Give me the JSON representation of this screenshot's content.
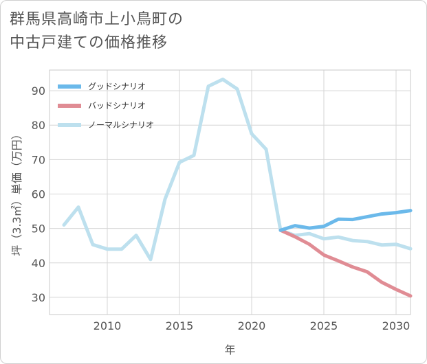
{
  "title_lines": [
    "群馬県高崎市上小鳥町の",
    "中古戸建ての価格推移"
  ],
  "chart_data": {
    "type": "line",
    "title": "群馬県高崎市上小鳥町の中古戸建ての価格推移",
    "xlabel": "年",
    "ylabel": "坪（3.3㎡）単価（万円）",
    "xlim": [
      2006,
      2031
    ],
    "ylim": [
      25,
      96
    ],
    "xticks": [
      2010,
      2015,
      2020,
      2025,
      2030
    ],
    "yticks": [
      30,
      40,
      50,
      60,
      70,
      80,
      90
    ],
    "grid": true,
    "legend_position": "top-left",
    "series": [
      {
        "name": "グッドシナリオ",
        "color": "#6bb9ea",
        "x": [
          2022,
          2023,
          2024,
          2025,
          2026,
          2027,
          2028,
          2029,
          2030,
          2031
        ],
        "values": [
          49.5,
          50.8,
          50.1,
          50.6,
          52.7,
          52.6,
          53.4,
          54.2,
          54.6,
          55.2
        ]
      },
      {
        "name": "バッドシナリオ",
        "color": "#e08c94",
        "x": [
          2022,
          2023,
          2024,
          2025,
          2026,
          2027,
          2028,
          2029,
          2030,
          2031
        ],
        "values": [
          49.5,
          47.6,
          45.4,
          42.3,
          40.6,
          38.8,
          37.4,
          34.4,
          32.3,
          30.4
        ]
      },
      {
        "name": "ノーマルシナリオ",
        "color": "#bde0ee",
        "x": [
          2007,
          2008,
          2009,
          2010,
          2011,
          2012,
          2013,
          2014,
          2015,
          2016,
          2017,
          2018,
          2019,
          2020,
          2021,
          2022,
          2023,
          2024,
          2025,
          2026,
          2027,
          2028,
          2029,
          2030,
          2031
        ],
        "values": [
          51.0,
          56.2,
          45.3,
          44.0,
          44.0,
          48.0,
          41.0,
          58.5,
          69.2,
          71.2,
          91.3,
          93.3,
          90.5,
          77.5,
          73.0,
          49.5,
          48.0,
          48.5,
          47.0,
          47.5,
          46.5,
          46.2,
          45.2,
          45.4,
          44.1
        ]
      }
    ]
  }
}
